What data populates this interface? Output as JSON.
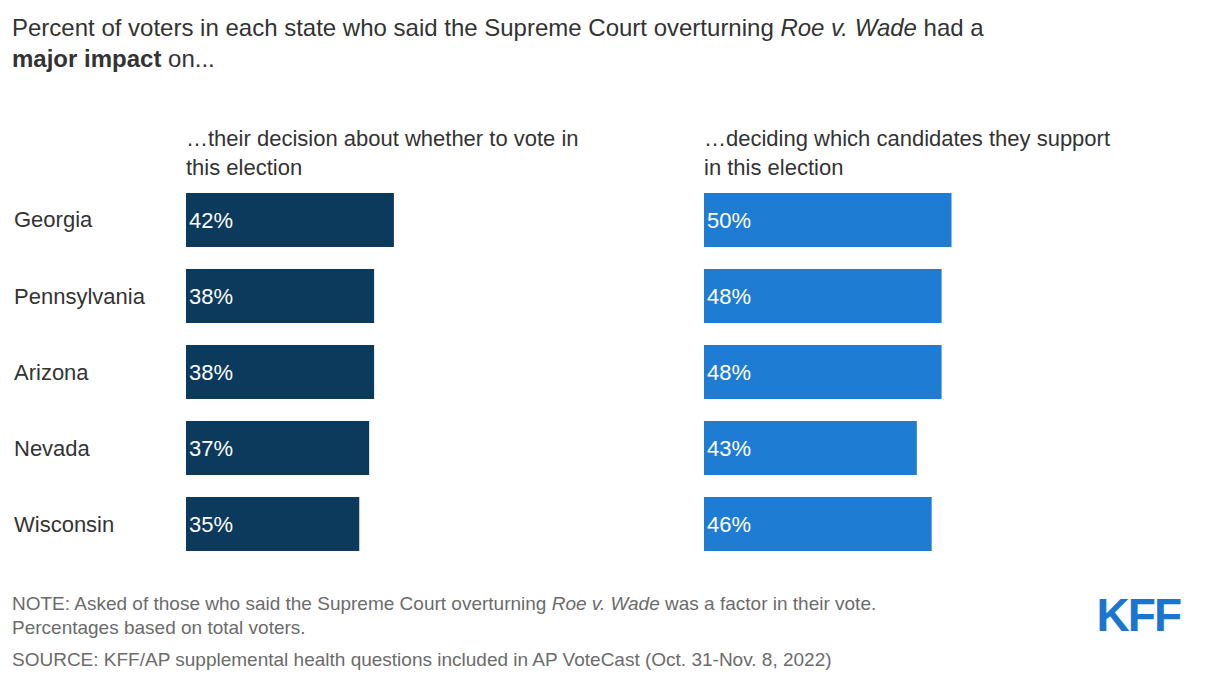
{
  "title": [
    [
      {
        "text": "Percent of voters in each state who said the Supreme Court overturning "
      },
      {
        "text": "Roe v. Wade",
        "italic": true
      },
      {
        "text": " had a"
      }
    ],
    [
      {
        "text": "major impact",
        "bold": true
      },
      {
        "text": " on..."
      }
    ]
  ],
  "notes": [
    [
      {
        "text": "NOTE: Asked of those who said the Supreme Court overturning "
      },
      {
        "text": "Roe v. Wade",
        "italic": true
      },
      {
        "text": " was a factor in their vote."
      }
    ],
    [
      {
        "text": "Percentages based on total voters."
      }
    ]
  ],
  "source": [
    [
      {
        "text": "SOURCE: KFF/AP supplemental health questions included in AP VoteCast (Oct. 31-Nov. 8, 2022)"
      }
    ]
  ],
  "logo": "KFF",
  "chart_data": [
    {
      "type": "bar",
      "orientation": "horizontal",
      "title": [
        "…their decision about whether to vote in",
        "this election"
      ],
      "categories": [
        "Georgia",
        "Pennsylvania",
        "Arizona",
        "Nevada",
        "Wisconsin"
      ],
      "values": [
        42,
        38,
        38,
        37,
        35
      ],
      "value_labels": [
        "42%",
        "38%",
        "38%",
        "37%",
        "35%"
      ],
      "color": "#0b3a5d",
      "xlim": [
        0,
        100
      ],
      "data_labels": true,
      "tick_labels": "y",
      "grid": false
    },
    {
      "type": "bar",
      "orientation": "horizontal",
      "title": [
        "…deciding which candidates they support",
        "in this election"
      ],
      "categories": [
        "Georgia",
        "Pennsylvania",
        "Arizona",
        "Nevada",
        "Wisconsin"
      ],
      "values": [
        50,
        48,
        48,
        43,
        46
      ],
      "value_labels": [
        "50%",
        "48%",
        "48%",
        "43%",
        "46%"
      ],
      "color": "#1f7cd3",
      "xlim": [
        0,
        100
      ],
      "data_labels": true,
      "tick_labels": false,
      "grid": false
    }
  ]
}
